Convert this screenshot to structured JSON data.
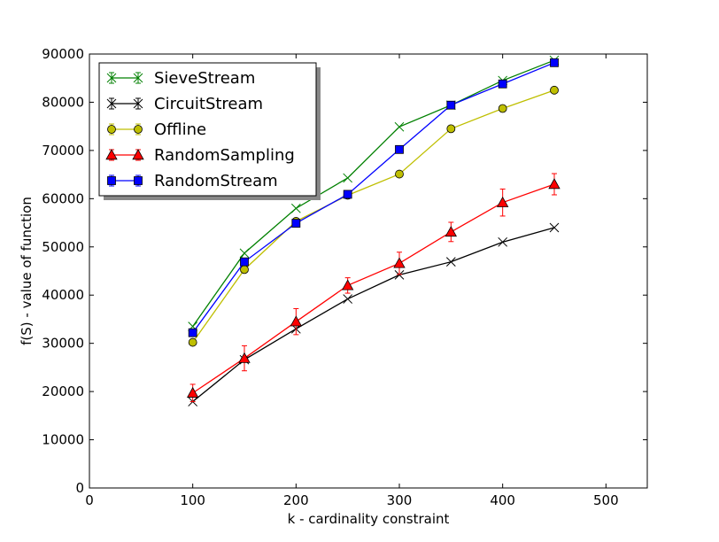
{
  "chart_data": {
    "type": "line",
    "xlabel": "k - cardinality constraint",
    "ylabel": "f(S) - value of function",
    "xlim": [
      0,
      540
    ],
    "ylim": [
      0,
      90000
    ],
    "xticks": [
      0,
      100,
      200,
      300,
      400,
      500
    ],
    "yticks": [
      0,
      10000,
      20000,
      30000,
      40000,
      50000,
      60000,
      70000,
      80000,
      90000
    ],
    "grid": false,
    "legend": "top-left",
    "x": [
      100,
      150,
      200,
      250,
      300,
      350,
      400,
      450
    ],
    "series": [
      {
        "name": "SieveStream",
        "color": "#008000",
        "marker": "x",
        "values": [
          33500,
          48700,
          58000,
          64300,
          74900,
          79400,
          84500,
          88700
        ],
        "errors": [
          0,
          0,
          0,
          0,
          0,
          0,
          0,
          0
        ]
      },
      {
        "name": "CircuitStream",
        "color": "#000000",
        "marker": "x",
        "values": [
          17900,
          26600,
          33000,
          39200,
          44200,
          46900,
          51000,
          54000
        ],
        "errors": [
          0,
          0,
          0,
          0,
          0,
          0,
          0,
          0
        ]
      },
      {
        "name": "Offline",
        "color": "#bfbf00",
        "marker": "circle",
        "values": [
          30200,
          45300,
          55300,
          60700,
          65100,
          74500,
          78700,
          82500
        ],
        "errors": [
          0,
          0,
          0,
          0,
          0,
          0,
          0,
          0
        ]
      },
      {
        "name": "RandomSampling",
        "color": "#ff0000",
        "marker": "triangle",
        "values": [
          19700,
          26900,
          34500,
          42000,
          46600,
          53100,
          59200,
          63000
        ],
        "errors": [
          1800,
          2600,
          2700,
          1600,
          2300,
          2000,
          2800,
          2200
        ]
      },
      {
        "name": "RandomStream",
        "color": "#0000ff",
        "marker": "square",
        "values": [
          32200,
          46900,
          54900,
          60900,
          70200,
          79400,
          83800,
          88200
        ],
        "errors": [
          0,
          0,
          0,
          0,
          0,
          0,
          0,
          0
        ]
      }
    ]
  }
}
